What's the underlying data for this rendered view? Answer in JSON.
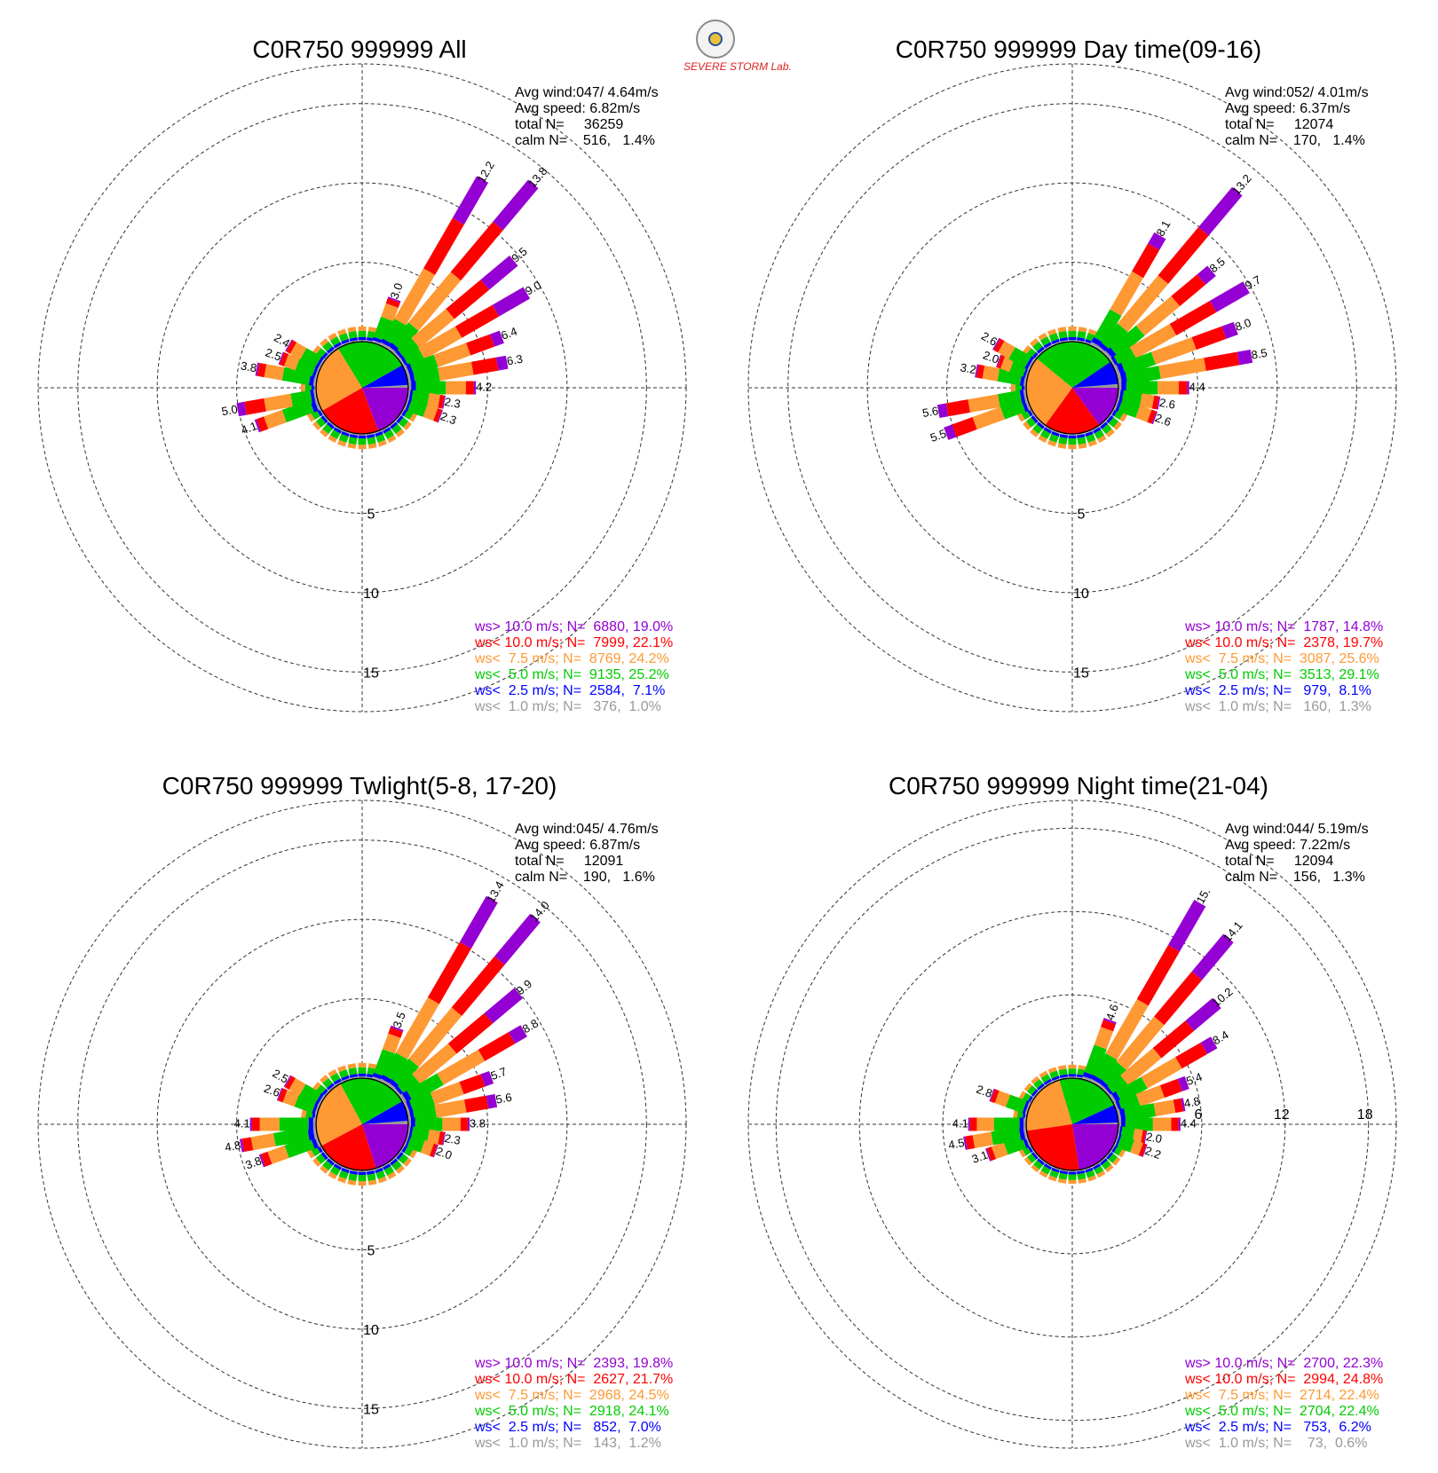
{
  "chart_data": [
    {
      "type": "polar-bar",
      "title": "C0R750 999999 All",
      "stats": [
        "Avg wind:047/ 4.64m/s",
        "Avg speed: 6.82m/s",
        "total N=     36259",
        "calm N=    516,   1.4%"
      ],
      "ring_labels": [
        "5",
        "10",
        "15"
      ],
      "rmax": 17.5,
      "center_pie": [
        19.0,
        22.1,
        24.2,
        25.2,
        7.1,
        1.0
      ],
      "legend": [
        {
          "label": "ws> 10.0 m/s; N=  6880, 19.0%",
          "color": "#9400d3"
        },
        {
          "label": "ws< 10.0 m/s; N=  7999, 22.1%",
          "color": "#ff0000"
        },
        {
          "label": "ws<  7.5 m/s; N=  8769, 24.2%",
          "color": "#ff9933"
        },
        {
          "label": "ws<  5.0 m/s; N=  9135, 25.2%",
          "color": "#00cc00"
        },
        {
          "label": "ws<  2.5 m/s; N=  2584,  7.1%",
          "color": "#0000ff"
        },
        {
          "label": "ws<  1.0 m/s; N=   376,  1.0%",
          "color": "#999999"
        }
      ],
      "bars": [
        {
          "dir": 20,
          "value": 3.0,
          "label": "3.0"
        },
        {
          "dir": 30,
          "value": 12.2,
          "label": "12.2"
        },
        {
          "dir": 40,
          "value": 13.8,
          "label": "13.8"
        },
        {
          "dir": 50,
          "value": 9.5,
          "label": "9.5"
        },
        {
          "dir": 60,
          "value": 9.0,
          "label": "9.0"
        },
        {
          "dir": 70,
          "value": 6.4,
          "label": "6.4"
        },
        {
          "dir": 80,
          "value": 6.3,
          "label": "6.3"
        },
        {
          "dir": 90,
          "value": 4.2,
          "label": "4.2"
        },
        {
          "dir": 100,
          "value": 2.3,
          "label": "2.3"
        },
        {
          "dir": 110,
          "value": 2.3,
          "label": "2.3"
        },
        {
          "dir": 250,
          "value": 4.1,
          "label": "4.1"
        },
        {
          "dir": 260,
          "value": 5.0,
          "label": "5.0"
        },
        {
          "dir": 280,
          "value": 3.8,
          "label": "3.8"
        },
        {
          "dir": 290,
          "value": 2.5,
          "label": "2.5"
        },
        {
          "dir": 300,
          "value": 2.4,
          "label": "2.4"
        }
      ]
    },
    {
      "type": "polar-bar",
      "title": "C0R750 999999 Day time(09-16)",
      "stats": [
        "Avg wind:052/ 4.01m/s",
        "Avg speed: 6.37m/s",
        "total N=     12074",
        "calm N=    170,   1.4%"
      ],
      "ring_labels": [
        "5",
        "10",
        "15"
      ],
      "rmax": 17.5,
      "center_pie": [
        14.8,
        19.7,
        25.6,
        29.1,
        8.1,
        1.3
      ],
      "legend": [
        {
          "label": "ws> 10.0 m/s; N=  1787, 14.8%",
          "color": "#9400d3"
        },
        {
          "label": "ws< 10.0 m/s; N=  2378, 19.7%",
          "color": "#ff0000"
        },
        {
          "label": "ws<  7.5 m/s; N=  3087, 25.6%",
          "color": "#ff9933"
        },
        {
          "label": "ws<  5.0 m/s; N=  3513, 29.1%",
          "color": "#00cc00"
        },
        {
          "label": "ws<  2.5 m/s; N=   979,  8.1%",
          "color": "#0000ff"
        },
        {
          "label": "ws<  1.0 m/s; N=   160,  1.3%",
          "color": "#999999"
        }
      ],
      "bars": [
        {
          "dir": 30,
          "value": 8.1,
          "label": "8.1"
        },
        {
          "dir": 40,
          "value": 13.2,
          "label": "13.2"
        },
        {
          "dir": 50,
          "value": 8.5,
          "label": "8.5"
        },
        {
          "dir": 60,
          "value": 9.7,
          "label": "9.7"
        },
        {
          "dir": 70,
          "value": 8.0,
          "label": "8.0"
        },
        {
          "dir": 80,
          "value": 8.5,
          "label": "8.5"
        },
        {
          "dir": 90,
          "value": 4.4,
          "label": "4.4"
        },
        {
          "dir": 100,
          "value": 2.6,
          "label": "2.6"
        },
        {
          "dir": 110,
          "value": 2.6,
          "label": "2.6"
        },
        {
          "dir": 250,
          "value": 5.5,
          "label": "5.5"
        },
        {
          "dir": 260,
          "value": 5.6,
          "label": "5.6"
        },
        {
          "dir": 280,
          "value": 3.2,
          "label": "3.2"
        },
        {
          "dir": 290,
          "value": 2.0,
          "label": "2.0"
        },
        {
          "dir": 300,
          "value": 2.6,
          "label": "2.6"
        }
      ]
    },
    {
      "type": "polar-bar",
      "title": "C0R750 999999 Twlight(5-8, 17-20)",
      "stats": [
        "Avg wind:045/ 4.76m/s",
        "Avg speed: 6.87m/s",
        "total N=     12091",
        "calm N=    190,   1.6%"
      ],
      "ring_labels": [
        "5",
        "10",
        "15"
      ],
      "rmax": 17.5,
      "center_pie": [
        19.8,
        21.7,
        24.5,
        24.1,
        7.0,
        1.2
      ],
      "legend": [
        {
          "label": "ws> 10.0 m/s; N=  2393, 19.8%",
          "color": "#9400d3"
        },
        {
          "label": "ws< 10.0 m/s; N=  2627, 21.7%",
          "color": "#ff0000"
        },
        {
          "label": "ws<  7.5 m/s; N=  2968, 24.5%",
          "color": "#ff9933"
        },
        {
          "label": "ws<  5.0 m/s; N=  2918, 24.1%",
          "color": "#00cc00"
        },
        {
          "label": "ws<  2.5 m/s; N=   852,  7.0%",
          "color": "#0000ff"
        },
        {
          "label": "ws<  1.0 m/s; N=   143,  1.2%",
          "color": "#999999"
        }
      ],
      "bars": [
        {
          "dir": 20,
          "value": 3.5,
          "label": "3.5"
        },
        {
          "dir": 30,
          "value": 13.4,
          "label": "13.4"
        },
        {
          "dir": 40,
          "value": 14.0,
          "label": "14.0"
        },
        {
          "dir": 50,
          "value": 9.9,
          "label": "9.9"
        },
        {
          "dir": 60,
          "value": 8.8,
          "label": "8.8"
        },
        {
          "dir": 70,
          "value": 5.7,
          "label": "5.7"
        },
        {
          "dir": 80,
          "value": 5.6,
          "label": "5.6"
        },
        {
          "dir": 90,
          "value": 3.8,
          "label": "3.8"
        },
        {
          "dir": 100,
          "value": 2.3,
          "label": "2.3"
        },
        {
          "dir": 110,
          "value": 2.0,
          "label": "2.0"
        },
        {
          "dir": 250,
          "value": 3.8,
          "label": "3.8"
        },
        {
          "dir": 260,
          "value": 4.8,
          "label": "4.8"
        },
        {
          "dir": 270,
          "value": 4.1,
          "label": "4.1"
        },
        {
          "dir": 290,
          "value": 2.6,
          "label": "2.6"
        },
        {
          "dir": 300,
          "value": 2.5,
          "label": "2.5"
        }
      ]
    },
    {
      "type": "polar-bar",
      "title": "C0R750 999999 Night time(21-04)",
      "stats": [
        "Avg wind:044/ 5.19m/s",
        "Avg speed: 7.22m/s",
        "total N=     12094",
        "calm N=    156,   1.3%"
      ],
      "ring_labels": [
        "6",
        "12",
        "18"
      ],
      "rmax": 20,
      "ring_step": 6,
      "center_pie": [
        22.3,
        24.8,
        22.4,
        22.4,
        6.2,
        0.6
      ],
      "legend": [
        {
          "label": "ws> 10.0 m/s; N=  2700, 22.3%",
          "color": "#9400d3"
        },
        {
          "label": "ws< 10.0 m/s; N=  2994, 24.8%",
          "color": "#ff0000"
        },
        {
          "label": "ws<  7.5 m/s; N=  2714, 22.4%",
          "color": "#ff9933"
        },
        {
          "label": "ws<  5.0 m/s; N=  2704, 22.4%",
          "color": "#00cc00"
        },
        {
          "label": "ws<  2.5 m/s; N=   753,  6.2%",
          "color": "#0000ff"
        },
        {
          "label": "ws<  1.0 m/s; N=    73,  0.6%",
          "color": "#999999"
        }
      ],
      "bars": [
        {
          "dir": 20,
          "value": 4.6,
          "label": "4.6"
        },
        {
          "dir": 30,
          "value": 15.0,
          "label": "15."
        },
        {
          "dir": 40,
          "value": 14.1,
          "label": "14.1"
        },
        {
          "dir": 50,
          "value": 10.2,
          "label": "10.2"
        },
        {
          "dir": 60,
          "value": 8.4,
          "label": "8.4"
        },
        {
          "dir": 70,
          "value": 5.4,
          "label": "5.4"
        },
        {
          "dir": 80,
          "value": 4.8,
          "label": "4.8"
        },
        {
          "dir": 90,
          "value": 4.4,
          "label": "4.4"
        },
        {
          "dir": 100,
          "value": 2.0,
          "label": "2.0"
        },
        {
          "dir": 110,
          "value": 2.2,
          "label": "2.2"
        },
        {
          "dir": 250,
          "value": 3.1,
          "label": "3.1"
        },
        {
          "dir": 260,
          "value": 4.5,
          "label": "4.5"
        },
        {
          "dir": 270,
          "value": 4.1,
          "label": "4.1"
        },
        {
          "dir": 290,
          "value": 2.8,
          "label": "2.8"
        }
      ]
    }
  ],
  "logo": {
    "text": "SEVERE STORM Lab."
  },
  "colors": {
    "ws_gt_10": "#9400d3",
    "ws_lt_10": "#ff0000",
    "ws_lt_7_5": "#ff9933",
    "ws_lt_5": "#00cc00",
    "ws_lt_2_5": "#0000ff",
    "ws_lt_1": "#999999"
  }
}
